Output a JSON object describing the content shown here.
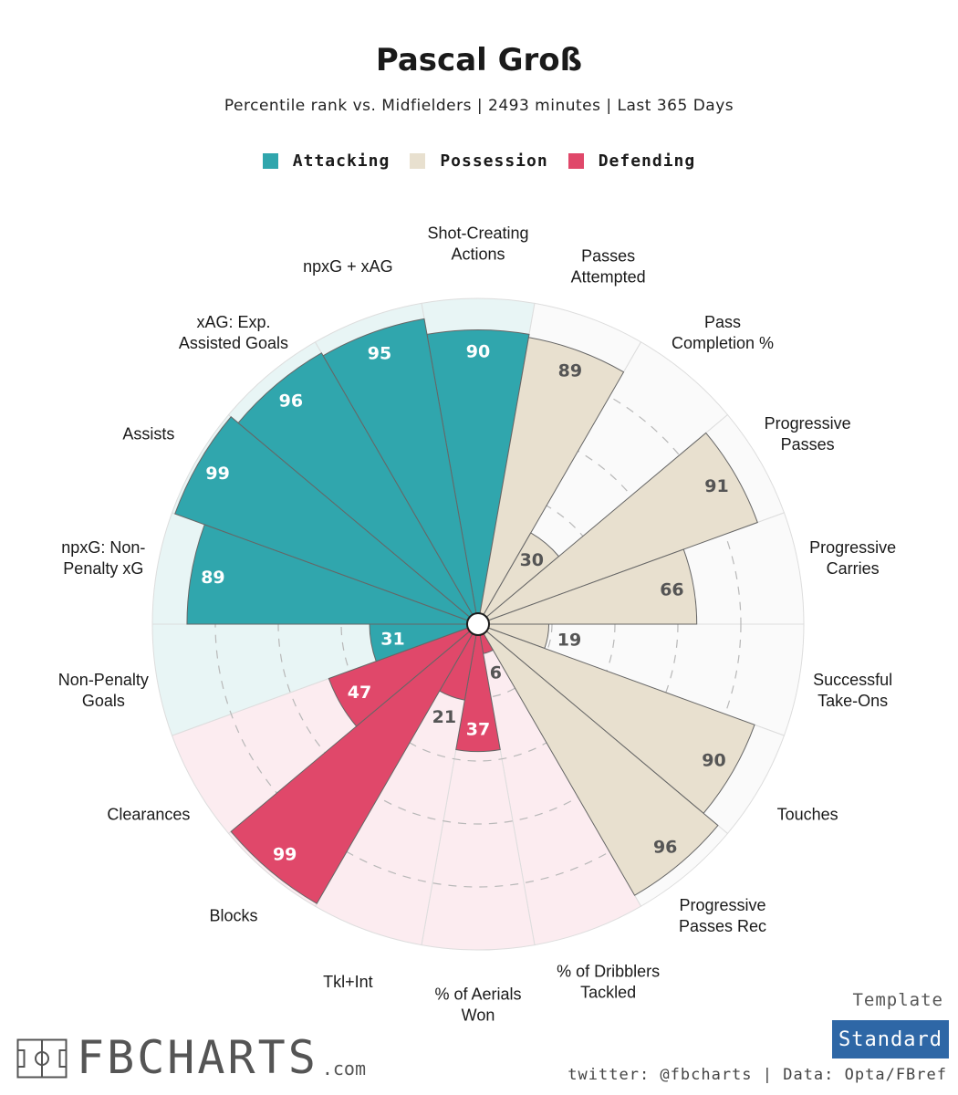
{
  "header": {
    "title": "Pascal Groß",
    "subtitle": "Percentile rank vs. Midfielders | 2493 minutes | Last 365 Days"
  },
  "legend": [
    {
      "label": "Attacking",
      "color": "#30a6ad"
    },
    {
      "label": "Possession",
      "color": "#e8e0cf"
    },
    {
      "label": "Defending",
      "color": "#e0486a"
    }
  ],
  "colors": {
    "attacking": "#30a6ad",
    "attacking_bg": "#e8f5f5",
    "possession": "#e8e0cf",
    "possession_bg": "#fafafa",
    "defending": "#e0486a",
    "defending_bg": "#fcecf0"
  },
  "chart_data": {
    "type": "radar_bar",
    "title": "Pascal Groß",
    "ylim": [
      0,
      100
    ],
    "categories": [
      {
        "label": "Shot-Creating\nActions",
        "value": 90,
        "group": "attacking"
      },
      {
        "label": "Passes\nAttempted",
        "value": 89,
        "group": "possession"
      },
      {
        "label": "Pass\nCompletion %",
        "value": 30,
        "group": "possession"
      },
      {
        "label": "Progressive\nPasses",
        "value": 91,
        "group": "possession"
      },
      {
        "label": "Progressive\nCarries",
        "value": 66,
        "group": "possession"
      },
      {
        "label": "Successful\nTake-Ons",
        "value": 19,
        "group": "possession"
      },
      {
        "label": "Touches",
        "value": 90,
        "group": "possession"
      },
      {
        "label": "Progressive\nPasses Rec",
        "value": 96,
        "group": "possession"
      },
      {
        "label": "% of Dribblers\nTackled",
        "value": 6,
        "group": "defending"
      },
      {
        "label": "% of Aerials\nWon",
        "value": 37,
        "group": "defending"
      },
      {
        "label": "Tkl+Int",
        "value": 21,
        "group": "defending"
      },
      {
        "label": "Blocks",
        "value": 99,
        "group": "defending"
      },
      {
        "label": "Clearances",
        "value": 47,
        "group": "defending"
      },
      {
        "label": "Non-Penalty\nGoals",
        "value": 31,
        "group": "attacking"
      },
      {
        "label": "npxG: Non-\nPenalty xG",
        "value": 89,
        "group": "attacking"
      },
      {
        "label": "Assists",
        "value": 99,
        "group": "attacking"
      },
      {
        "label": "xAG: Exp.\nAssisted Goals",
        "value": 96,
        "group": "attacking"
      },
      {
        "label": "npxG + xAG",
        "value": 95,
        "group": "attacking"
      }
    ]
  },
  "footer": {
    "logo_text": "FBCHARTS",
    "logo_suffix": ".com",
    "template_label": "Template",
    "template_value": "Standard",
    "credits": "twitter: @fbcharts | Data: Opta/FBref"
  }
}
